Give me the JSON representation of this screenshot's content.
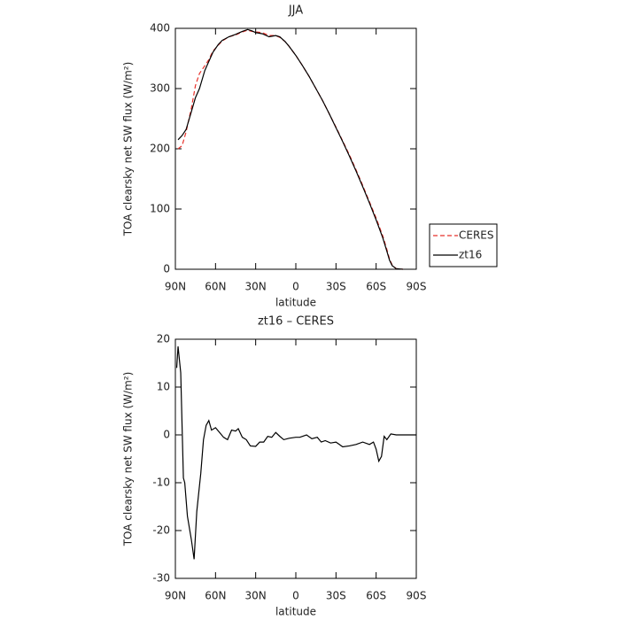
{
  "charts": [
    {
      "type": "line",
      "title": "JJA",
      "xlabel": "latitude",
      "ylabel": "TOA clearsky net SW flux (W/m²)",
      "x": [
        88,
        85,
        82,
        78,
        75,
        72,
        68,
        65,
        62,
        58,
        55,
        50,
        45,
        40,
        36,
        33,
        30,
        25,
        20,
        15,
        12,
        8,
        5,
        0,
        -5,
        -10,
        -15,
        -20,
        -25,
        -30,
        -35,
        -40,
        -45,
        -50,
        -55,
        -60,
        -65,
        -68,
        -70,
        -72,
        -75,
        -80
      ],
      "series": [
        {
          "name": "CERES",
          "color": "#e8312a",
          "dashed": true,
          "values": [
            200,
            205,
            228,
            268,
            305,
            325,
            338,
            348,
            362,
            372,
            379,
            386,
            389,
            394,
            397,
            395,
            394,
            393,
            388,
            388,
            385,
            378,
            370,
            355,
            338,
            320,
            300,
            280,
            258,
            236,
            213,
            190,
            165,
            139,
            112,
            85,
            55,
            33,
            17,
            7,
            1,
            0
          ]
        },
        {
          "name": "zt16",
          "color": "#000000",
          "dashed": false,
          "values": [
            215,
            222,
            232,
            262,
            285,
            300,
            330,
            345,
            360,
            373,
            380,
            386,
            390,
            395,
            398,
            396,
            393,
            391,
            386,
            388,
            386,
            378,
            370,
            355,
            338,
            320,
            300,
            280,
            258,
            235,
            212,
            188,
            163,
            137,
            110,
            82,
            52,
            30,
            15,
            6,
            1,
            0
          ]
        }
      ],
      "xlim": [
        90,
        -90
      ],
      "xticks": [
        {
          "value": 90,
          "label": "90N"
        },
        {
          "value": 60,
          "label": "60N"
        },
        {
          "value": 30,
          "label": "30N"
        },
        0,
        {
          "value": -30,
          "label": "30S"
        },
        {
          "value": -60,
          "label": "60S"
        },
        {
          "value": -90,
          "label": "90S"
        }
      ],
      "ylim": [
        0,
        400
      ],
      "yticks": [
        0,
        100,
        200,
        300,
        400
      ],
      "legend": "outside right"
    },
    {
      "type": "line",
      "title": "zt16 – CERES",
      "xlabel": "latitude",
      "ylabel": "TOA clearsky net SW flux (W/m²)",
      "x": [
        89,
        88,
        86,
        84,
        83,
        81,
        78,
        76,
        74,
        71,
        69,
        67,
        65,
        63,
        60,
        57,
        54,
        51,
        48,
        45,
        43,
        40,
        37,
        34,
        30,
        27,
        24,
        21,
        18,
        15,
        12,
        9,
        5,
        0,
        -3,
        -8,
        -12,
        -16,
        -19,
        -22,
        -26,
        -30,
        -35,
        -40,
        -45,
        -50,
        -55,
        -58,
        -60,
        -62,
        -64,
        -66,
        -68,
        -71,
        -75,
        -80,
        -90
      ],
      "series": [
        {
          "name": "zt16 – CERES",
          "color": "#000000",
          "dashed": false,
          "values": [
            14,
            18.5,
            13,
            -9,
            -10,
            -17,
            -22,
            -26,
            -16,
            -8,
            -1,
            2,
            3,
            1,
            1.5,
            0.5,
            -0.5,
            -1,
            1,
            0.8,
            1.3,
            -0.5,
            -1,
            -2.3,
            -2.4,
            -1.5,
            -1.5,
            -0.3,
            -0.5,
            0.5,
            -0.3,
            -1,
            -0.7,
            -0.5,
            -0.5,
            0,
            -0.8,
            -0.5,
            -1.5,
            -1.2,
            -1.7,
            -1.5,
            -2.5,
            -2.3,
            -2,
            -1.5,
            -2,
            -1.5,
            -3,
            -5.5,
            -4.5,
            -0.3,
            -1,
            0.2,
            0,
            0,
            0
          ]
        }
      ],
      "xlim": [
        90,
        -90
      ],
      "xticks": [
        {
          "value": 90,
          "label": "90N"
        },
        {
          "value": 60,
          "label": "60N"
        },
        {
          "value": 30,
          "label": "30N"
        },
        0,
        {
          "value": -30,
          "label": "30S"
        },
        {
          "value": -60,
          "label": "60S"
        },
        {
          "value": -90,
          "label": "90S"
        }
      ],
      "ylim": [
        -30,
        20
      ],
      "yticks": [
        -30,
        -20,
        -10,
        0,
        10,
        20
      ]
    }
  ]
}
